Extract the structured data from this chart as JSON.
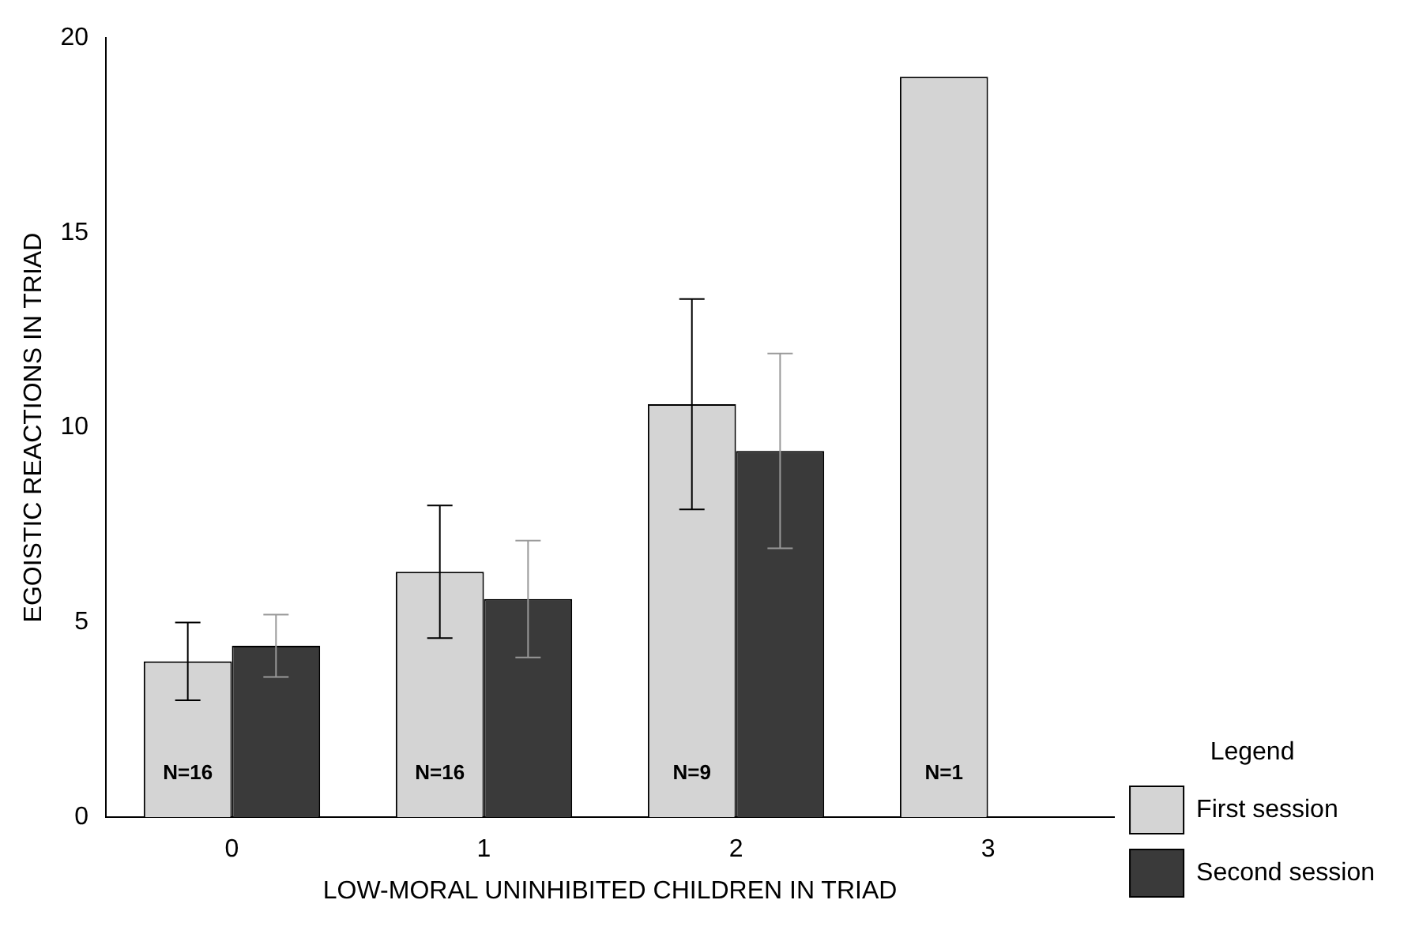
{
  "chart_data": {
    "type": "bar",
    "xlabel": "LOW-MORAL UNINHIBITED CHILDREN IN TRIAD",
    "ylabel": "EGOISTIC REACTIONS IN TRIAD",
    "legend_title": "Legend",
    "categories": [
      "0",
      "1",
      "2",
      "3"
    ],
    "series": [
      {
        "name": "First session",
        "color": "#d4d4d4",
        "values": [
          4.0,
          6.3,
          10.6,
          19.0
        ],
        "errors": [
          1.0,
          1.7,
          2.7,
          null
        ]
      },
      {
        "name": "Second session",
        "color": "#3a3a3a",
        "values": [
          4.4,
          5.6,
          9.4,
          null
        ],
        "errors": [
          0.8,
          1.5,
          2.5,
          null
        ]
      }
    ],
    "ylim": [
      0,
      20
    ],
    "yticks": [
      0,
      5,
      10,
      15,
      20
    ],
    "grid": false,
    "legend": "bottom right",
    "annotations": [
      {
        "text": "N=16",
        "x": "0",
        "y": 0
      },
      {
        "text": "N=16",
        "x": "1",
        "y": 0
      },
      {
        "text": "N=9",
        "x": "2",
        "y": 0
      },
      {
        "text": "N=1",
        "x": "3",
        "y": 0
      }
    ]
  }
}
